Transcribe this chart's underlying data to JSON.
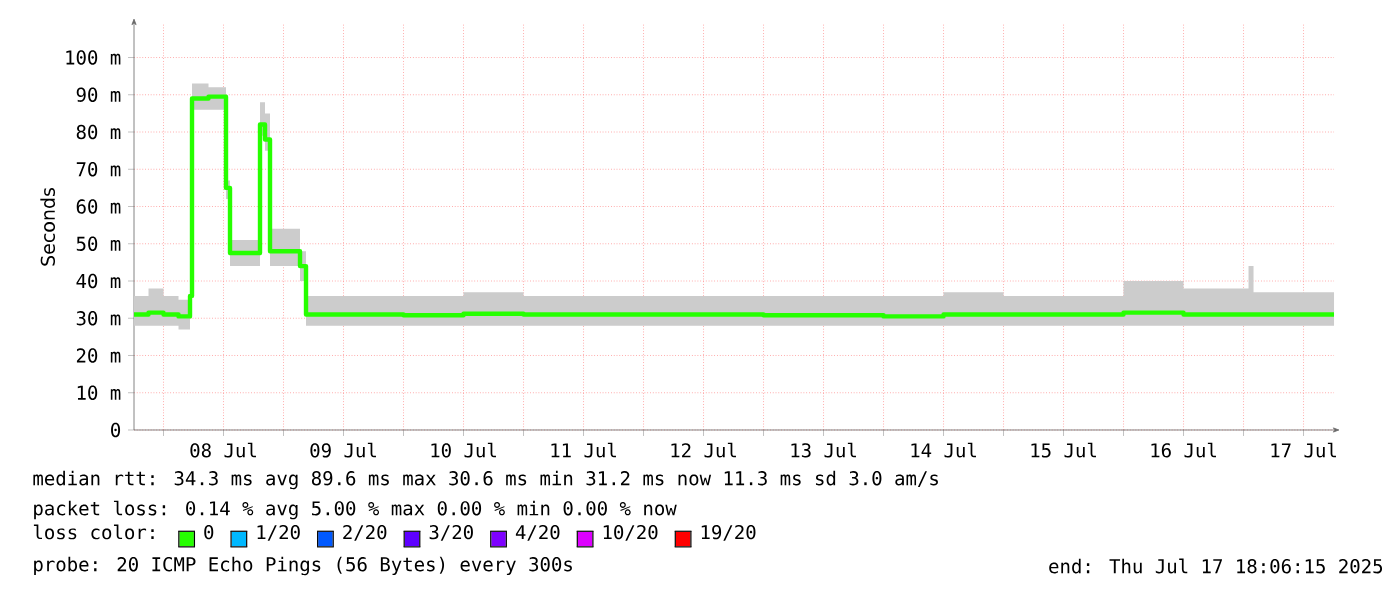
{
  "chart_data": {
    "type": "step",
    "ylabel": "Seconds",
    "legend_title": "loss color:",
    "legend": "bottom",
    "grid": true,
    "xlim": [
      "2025-07-07T18:06",
      "2025-07-17T18:06"
    ],
    "xticks": [
      {
        "value": "2025-07-08T00:00",
        "label": null
      },
      {
        "value": "2025-07-08T12:00",
        "label": "08 Jul"
      },
      {
        "value": "2025-07-09T00:00",
        "label": null
      },
      {
        "value": "2025-07-09T12:00",
        "label": "09 Jul"
      },
      {
        "value": "2025-07-10T00:00",
        "label": null
      },
      {
        "value": "2025-07-10T12:00",
        "label": "10 Jul"
      },
      {
        "value": "2025-07-11T00:00",
        "label": null
      },
      {
        "value": "2025-07-11T12:00",
        "label": "11 Jul"
      },
      {
        "value": "2025-07-12T00:00",
        "label": null
      },
      {
        "value": "2025-07-12T12:00",
        "label": "12 Jul"
      },
      {
        "value": "2025-07-13T00:00",
        "label": null
      },
      {
        "value": "2025-07-13T12:00",
        "label": "13 Jul"
      },
      {
        "value": "2025-07-14T00:00",
        "label": null
      },
      {
        "value": "2025-07-14T12:00",
        "label": "14 Jul"
      },
      {
        "value": "2025-07-15T00:00",
        "label": null
      },
      {
        "value": "2025-07-15T12:00",
        "label": "15 Jul"
      },
      {
        "value": "2025-07-16T00:00",
        "label": null
      },
      {
        "value": "2025-07-16T12:00",
        "label": "16 Jul"
      },
      {
        "value": "2025-07-17T00:00",
        "label": null
      },
      {
        "value": "2025-07-17T12:00",
        "label": "17 Jul"
      }
    ],
    "ylim": [
      0,
      109
    ],
    "yticks": [
      0,
      {
        "value": 10,
        "label": "10 m"
      },
      {
        "value": 20,
        "label": "20 m"
      },
      {
        "value": 30,
        "label": "30 m"
      },
      {
        "value": 40,
        "label": "40 m"
      },
      {
        "value": 50,
        "label": "50 m"
      },
      {
        "value": 60,
        "label": "60 m"
      },
      {
        "value": 70,
        "label": "70 m"
      },
      {
        "value": 80,
        "label": "80 m"
      },
      {
        "value": 90,
        "label": "90 m"
      },
      {
        "value": 100,
        "label": "100 m"
      }
    ],
    "x": [
      "2025-07-07T18:06",
      "2025-07-07T21:00",
      "2025-07-08T00:00",
      "2025-07-08T03:00",
      "2025-07-08T05:18",
      "2025-07-08T05:42",
      "2025-07-08T09:00",
      "2025-07-08T12:30",
      "2025-07-08T13:18",
      "2025-07-08T19:18",
      "2025-07-08T20:18",
      "2025-07-08T21:18",
      "2025-07-09T03:18",
      "2025-07-09T04:30",
      "2025-07-09T12:00",
      "2025-07-10T00:00",
      "2025-07-10T12:00",
      "2025-07-11T00:00",
      "2025-07-12T00:00",
      "2025-07-13T00:00",
      "2025-07-14T00:00",
      "2025-07-14T12:00",
      "2025-07-15T00:00",
      "2025-07-16T00:00",
      "2025-07-16T12:00",
      "2025-07-17T00:00",
      "2025-07-17T01:00",
      "2025-07-17T02:00",
      "2025-07-17T18:06"
    ],
    "series": [
      {
        "name": "0",
        "color": "#26ff00",
        "values": [
          31,
          31.5,
          31,
          30.5,
          36,
          89,
          89.5,
          65,
          47.5,
          82,
          78,
          48,
          44,
          31,
          31,
          30.8,
          31.2,
          31,
          31,
          30.8,
          30.5,
          31,
          31,
          31.5,
          31,
          31,
          31,
          31,
          31
        ],
        "lower": [
          28,
          28,
          28,
          27,
          33,
          86,
          86,
          62,
          44,
          79,
          75,
          44,
          40,
          28,
          28,
          28,
          28,
          28,
          28,
          28,
          28,
          28,
          28,
          28,
          28,
          28,
          28,
          28,
          28
        ],
        "upper": [
          36,
          38,
          36,
          35,
          39,
          93,
          92,
          67,
          51,
          88,
          85,
          54,
          48,
          36,
          36,
          36,
          37,
          36,
          36,
          36,
          36,
          37,
          36,
          40,
          38,
          38,
          44,
          37,
          37
        ]
      },
      {
        "name": "1/20",
        "color": "#00b8ff",
        "values": [
          null,
          null,
          null,
          null,
          null,
          null,
          null,
          null,
          null,
          null,
          null,
          null,
          null,
          null,
          null,
          null,
          null,
          null,
          null,
          null,
          null,
          null,
          null,
          null,
          null,
          null,
          null,
          null,
          null
        ]
      },
      {
        "name": "2/20",
        "color": "#0059ff",
        "values": [
          null,
          null,
          null,
          null,
          null,
          null,
          null,
          null,
          null,
          null,
          null,
          null,
          null,
          null,
          null,
          null,
          null,
          null,
          null,
          null,
          null,
          null,
          null,
          null,
          null,
          null,
          null,
          null,
          null
        ]
      },
      {
        "name": "3/20",
        "color": "#5e00ff",
        "values": [
          null,
          null,
          null,
          null,
          null,
          null,
          null,
          null,
          null,
          null,
          null,
          null,
          null,
          null,
          null,
          null,
          null,
          null,
          null,
          null,
          null,
          null,
          null,
          null,
          null,
          null,
          null,
          null,
          null
        ]
      },
      {
        "name": "4/20",
        "color": "#7e00ff",
        "values": [
          null,
          null,
          null,
          null,
          null,
          null,
          null,
          null,
          null,
          null,
          null,
          null,
          null,
          null,
          null,
          null,
          null,
          null,
          null,
          null,
          null,
          null,
          null,
          null,
          null,
          null,
          null,
          null,
          null
        ]
      },
      {
        "name": "10/20",
        "color": "#dd00ff",
        "values": [
          null,
          null,
          null,
          null,
          null,
          null,
          null,
          null,
          null,
          null,
          null,
          null,
          null,
          null,
          null,
          null,
          null,
          null,
          null,
          null,
          null,
          null,
          null,
          null,
          null,
          null,
          null,
          null,
          null
        ]
      },
      {
        "name": "19/20",
        "color": "#ff0000",
        "values": [
          null,
          null,
          null,
          null,
          null,
          null,
          null,
          null,
          null,
          null,
          null,
          null,
          null,
          null,
          null,
          null,
          null,
          null,
          null,
          null,
          null,
          null,
          null,
          null,
          null,
          null,
          null,
          null,
          null
        ]
      }
    ],
    "annotations": [
      "median rtt:  34.3 ms avg  89.6 ms max  30.6 ms min  31.2 ms now  11.3 ms sd  3.0   am/s",
      "packet loss: 0.14 % avg  5.00 % max  0.00 % min  0.00 % now",
      "probe:       20 ICMP Echo Pings (56 Bytes) every 300s",
      "end: Thu Jul 17 18:06:15 2025"
    ]
  }
}
